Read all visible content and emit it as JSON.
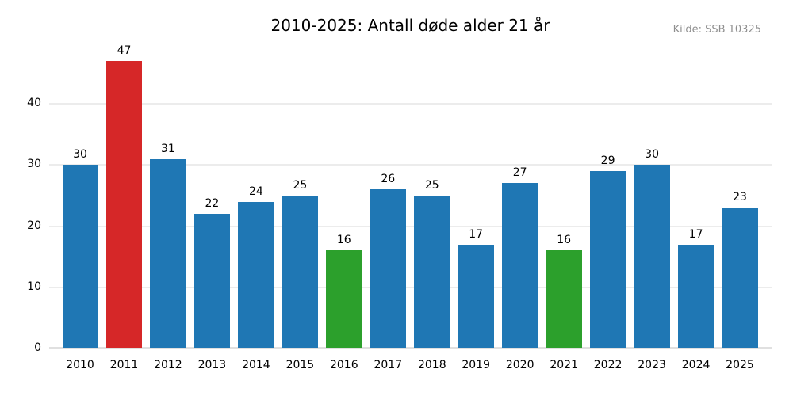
{
  "figure": {
    "title": "2010-2025: Antall døde alder 21 år",
    "source_note": "Kilde: SSB 10325"
  },
  "chart_data": {
    "type": "bar",
    "title": "2010-2025: Antall døde alder 21 år",
    "source_note": "Kilde: SSB 10325",
    "categories": [
      "2010",
      "2011",
      "2012",
      "2013",
      "2014",
      "2015",
      "2016",
      "2017",
      "2018",
      "2019",
      "2020",
      "2021",
      "2022",
      "2023",
      "2024",
      "2025"
    ],
    "values": [
      30,
      47,
      31,
      22,
      24,
      25,
      16,
      26,
      25,
      17,
      27,
      16,
      29,
      30,
      17,
      23
    ],
    "bar_colors": [
      "#1f77b4",
      "#d62728",
      "#1f77b4",
      "#1f77b4",
      "#1f77b4",
      "#1f77b4",
      "#2ca02c",
      "#1f77b4",
      "#1f77b4",
      "#1f77b4",
      "#1f77b4",
      "#2ca02c",
      "#1f77b4",
      "#1f77b4",
      "#1f77b4",
      "#1f77b4"
    ],
    "color_roles": {
      "default_bar": "#1f77b4",
      "max_value_bar": "#d62728",
      "min_value_bar": "#2ca02c"
    },
    "value_labels_shown": true,
    "xlabel": "",
    "ylabel": "",
    "yticks": [
      0,
      10,
      20,
      30,
      40
    ],
    "ylim": [
      0,
      49.2
    ],
    "grid": true,
    "legend": "none",
    "background": "#ffffff",
    "grid_color": "#ececec",
    "axis_line_color": "#e0e0e0",
    "text_color": "#000000",
    "source_note_color": "#8f8f8f"
  }
}
